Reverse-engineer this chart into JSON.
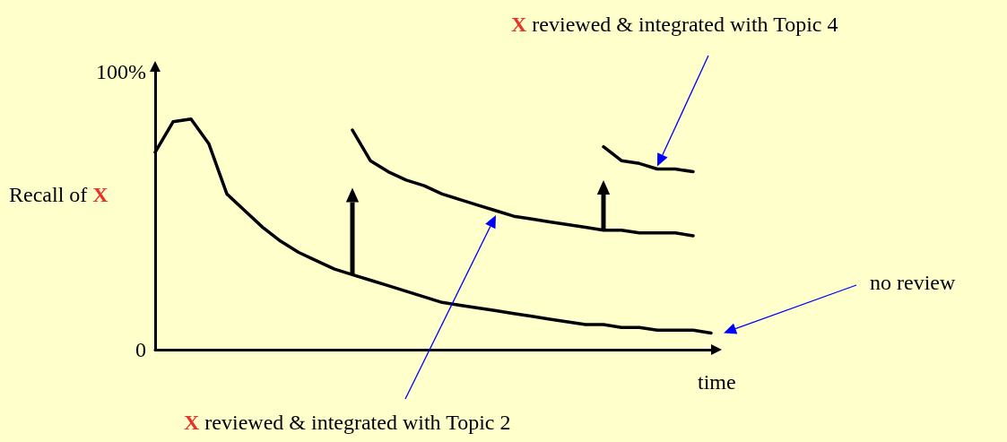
{
  "chart_data": {
    "type": "line",
    "xlabel": "time",
    "ylabel": "Recall of X",
    "categories": [
      null,
      null,
      null,
      null,
      null,
      null,
      null,
      null,
      null,
      null,
      null,
      null,
      null,
      null,
      null,
      null,
      null,
      null,
      null,
      null,
      null,
      null,
      null,
      null,
      null,
      null,
      null,
      null,
      null,
      null,
      null,
      null
    ],
    "ylim": [
      0,
      100
    ],
    "yticks": [
      0,
      {
        "value": 100,
        "label": "100%"
      }
    ],
    "series": [
      {
        "color": "#000000",
        "values": [
          71,
          82,
          83,
          74,
          56,
          50,
          44,
          39,
          35,
          32,
          29,
          27,
          25,
          23,
          21,
          19,
          17,
          16,
          15,
          14,
          13,
          12,
          11,
          10,
          9,
          9,
          8,
          8,
          7,
          7,
          7,
          6
        ]
      },
      {
        "color": "#000000",
        "values": [
          null,
          null,
          null,
          null,
          null,
          null,
          null,
          null,
          null,
          null,
          null,
          79,
          68,
          64,
          61,
          59,
          56,
          54,
          52,
          50,
          48,
          47,
          46,
          45,
          44,
          43,
          43,
          42,
          42,
          42,
          41,
          null
        ]
      },
      {
        "color": "#000000",
        "values": [
          null,
          null,
          null,
          null,
          null,
          null,
          null,
          null,
          null,
          null,
          null,
          null,
          null,
          null,
          null,
          null,
          null,
          null,
          null,
          null,
          null,
          null,
          null,
          null,
          null,
          73,
          68,
          67,
          65,
          65,
          64,
          null
        ]
      }
    ],
    "marker": "none",
    "line_style": "solid",
    "grid": false,
    "annotations": [
      "X reviewed & integrated with Topic 4",
      "no review",
      "X reviewed & integrated with Topic 2"
    ]
  }
}
